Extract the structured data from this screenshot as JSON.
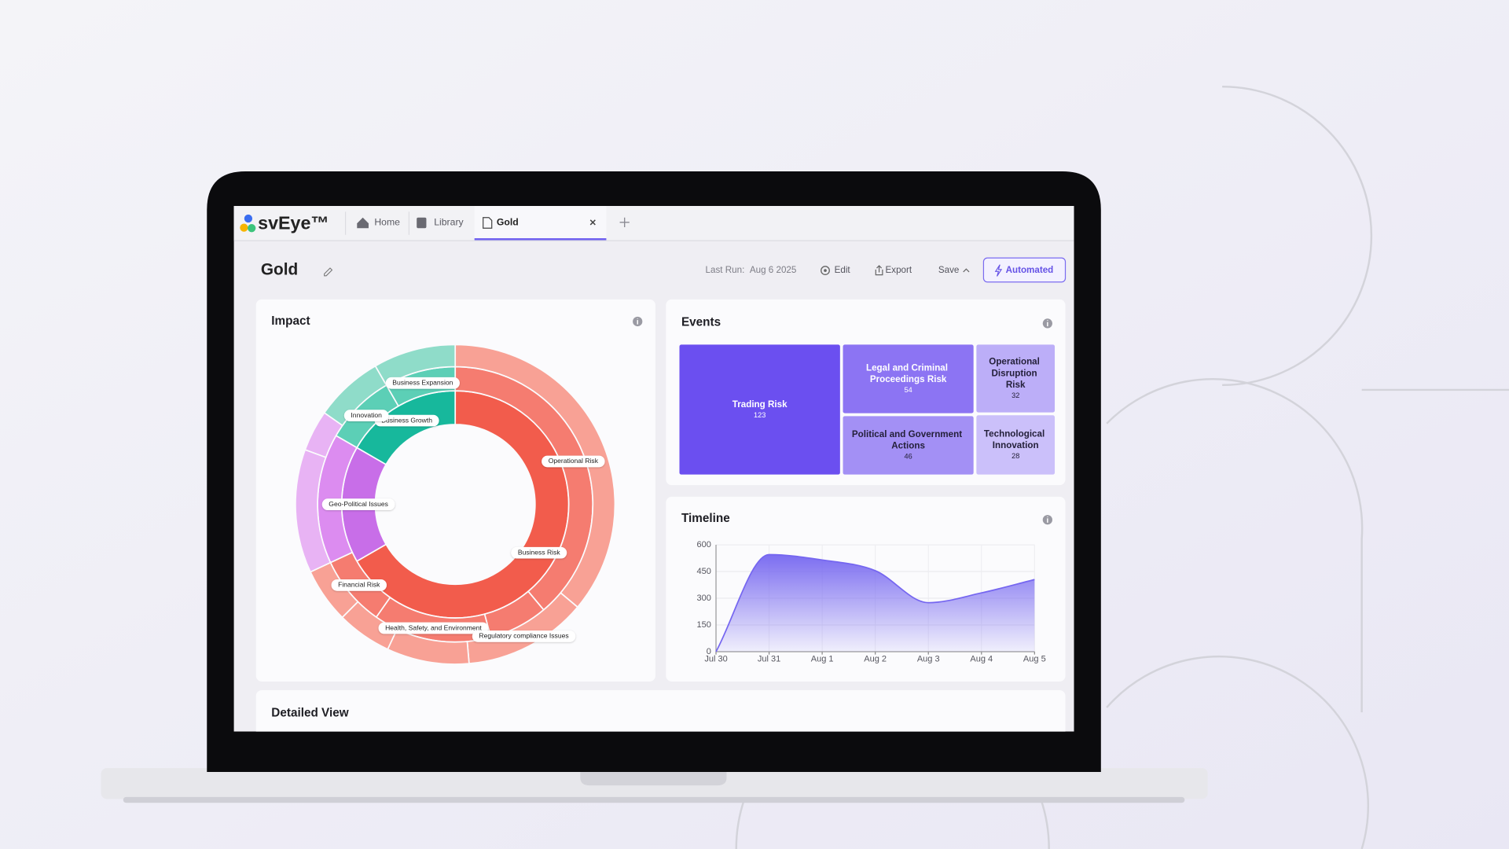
{
  "app": {
    "logo": "svEye™",
    "tabs": [
      "Home",
      "Library",
      "Gold"
    ]
  },
  "page": {
    "title": "Gold",
    "last_run_label": "Last Run:",
    "last_run": "Aug 6 2025",
    "actions": [
      "Edit",
      "Export",
      "Save",
      "Automated"
    ]
  },
  "sections": {
    "detailed_view": "Detailed View"
  },
  "chart_data": [
    {
      "type": "sunburst",
      "title": "Impact",
      "rings": [
        {
          "names": [
            "Business Risk",
            "Geo-Political Issues",
            "Business Growth"
          ],
          "values": [
            48,
            12,
            12
          ],
          "colors": [
            "#f25c4c",
            "#c86ee8",
            "#17b89c"
          ]
        },
        {
          "names": [
            "Operational Risk",
            null,
            "Health, Safety, and Environment",
            "Financial Risk",
            null,
            "Innovation",
            "Business Expansion"
          ],
          "values": [
            28,
            5,
            10,
            6,
            11,
            6,
            6
          ],
          "colors": [
            "#f57c70",
            "#f57c70",
            "#f57c70",
            "#f57c70",
            "#dc8cf0",
            "#5ccfb6",
            "#5ccfb6"
          ]
        },
        {
          "names": [
            null,
            "Regulatory compliance Issues",
            null,
            null,
            null,
            null,
            null,
            null,
            null
          ],
          "values": [
            26,
            9,
            6,
            4,
            4,
            9,
            3,
            5,
            6
          ],
          "colors": [
            "#f8a195",
            "#f8a195",
            "#f8a195",
            "#f8a195",
            "#f8a195",
            "#e8b3f4",
            "#e8b3f4",
            "#8fdcc9",
            "#8fdcc9"
          ]
        }
      ]
    },
    {
      "type": "treemap",
      "title": "Events",
      "categories": [
        "Trading Risk",
        "Legal and Criminal Proceedings Risk",
        "Operational Disruption Risk",
        "Political and Government Actions",
        "Technological Innovation"
      ],
      "values": [
        123,
        54,
        32,
        46,
        28
      ],
      "colors": [
        "#6b4ff0",
        "#8c74f3",
        "#bcaef8",
        "#a390f5",
        "#cbc0fa"
      ]
    },
    {
      "type": "area",
      "title": "Timeline",
      "categories": [
        "Jul 30",
        "Jul 31",
        "Aug 1",
        "Aug 2",
        "Aug 3",
        "Aug 4",
        "Aug 5"
      ],
      "values": [
        0,
        545,
        515,
        455,
        275,
        330,
        405
      ],
      "color": "#7566f0",
      "ylim": [
        0,
        600
      ],
      "yticks": [
        0,
        150,
        300,
        450,
        600
      ],
      "grid": true
    }
  ]
}
